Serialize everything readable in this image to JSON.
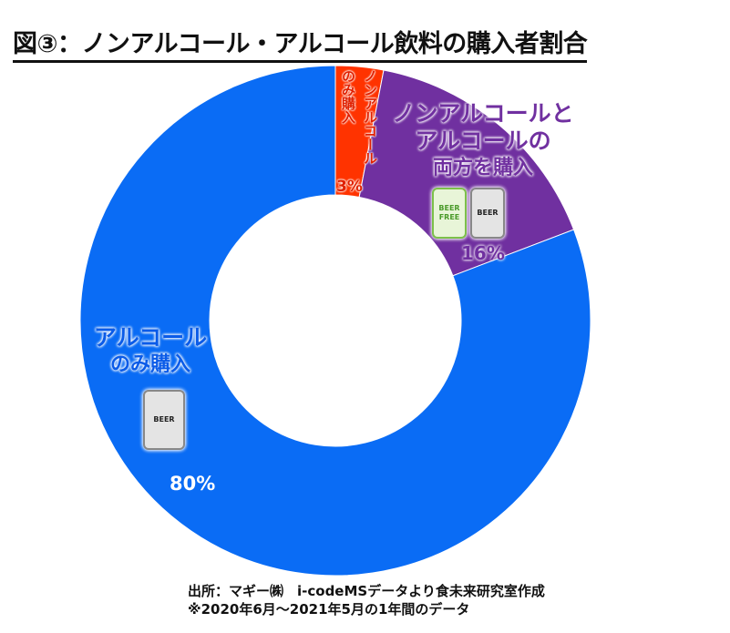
{
  "chart_data": {
    "type": "pie",
    "style": "donut",
    "title": "図③：ノンアルコール・アルコール飲料の購入者割合",
    "slices": [
      {
        "label": "ノンアルコールのみ購入",
        "value": 3,
        "value_label": "3%",
        "color": "#ff3300"
      },
      {
        "label": "ノンアルコールとアルコールの両方を購入",
        "value": 16,
        "value_label": "16%",
        "color": "#7030a0"
      },
      {
        "label": "アルコールのみ購入",
        "value": 80,
        "value_label": "80%",
        "color": "#0a6cf5"
      }
    ],
    "start": "12 o'clock",
    "direction": "clockwise"
  },
  "labels": {
    "red_line1": "ノンアルコール",
    "red_line2": "のみ購入",
    "purple_line1": "ノンアルコールと",
    "purple_line2": "アルコールの",
    "purple_line3": "両方を購入",
    "blue_line1": "アルコール",
    "blue_line2": "のみ購入",
    "can_beer": "BEER",
    "can_beer_free": "BEER FREE"
  },
  "notes": {
    "source": "出所：マギー㈱　i-codeMSデータより食未来研究室作成",
    "period": "※2020年6月～2021年5月の1年間のデータ"
  }
}
